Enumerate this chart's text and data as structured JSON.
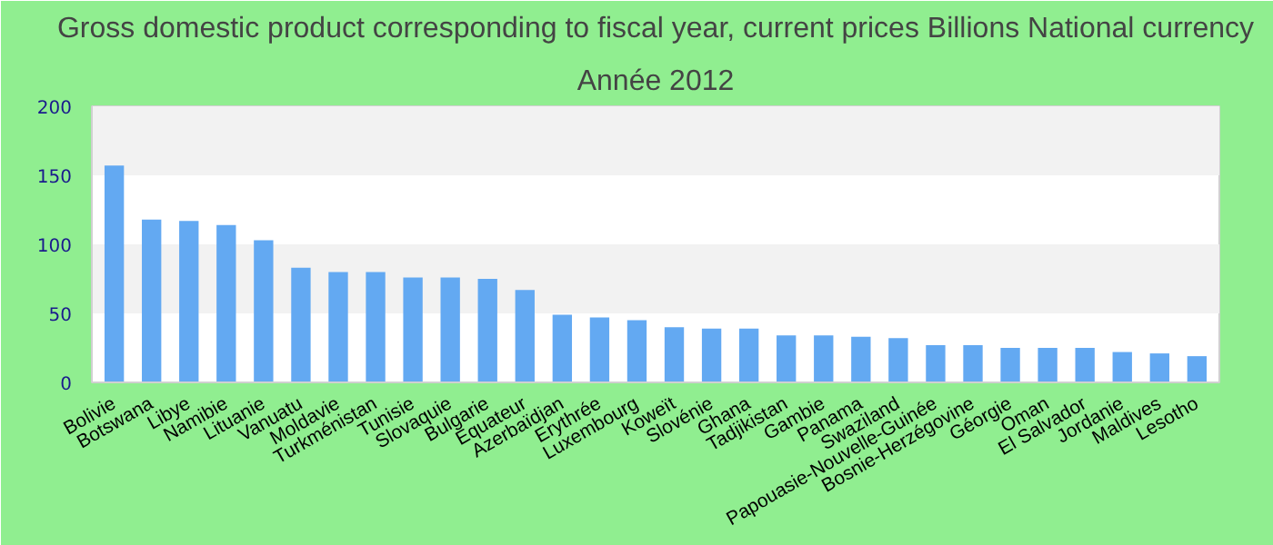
{
  "chart_data": {
    "type": "bar",
    "title": "Gross domestic product corresponding to fiscal year, current prices Billions National currency",
    "subtitle": "Année 2012",
    "categories": [
      "Bolivie",
      "Botswana",
      "Libye",
      "Namibie",
      "Lituanie",
      "Vanuatu",
      "Moldavie",
      "Turkménistan",
      "Tunisie",
      "Slovaquie",
      "Bulgarie",
      "Equateur",
      "Azerbaïdjan",
      "Erythrée",
      "Luxembourg",
      "Koweït",
      "Slovénie",
      "Ghana",
      "Tadjikistan",
      "Gambie",
      "Panama",
      "Swaziland",
      "Papouasie-Nouvelle-Guinée",
      "Bosnie-Herzégovine",
      "Géorgie",
      "Oman",
      "El Salvador",
      "Jordanie",
      "Maldives",
      "Lesotho"
    ],
    "values": [
      157,
      118,
      117,
      114,
      103,
      83,
      80,
      80,
      76,
      76,
      75,
      67,
      49,
      47,
      45,
      40,
      39,
      39,
      34,
      34,
      33,
      32,
      27,
      27,
      25,
      25,
      25,
      22,
      21,
      19
    ],
    "color": "#63a9f2",
    "ylim": [
      0,
      200
    ],
    "yticks": [
      0,
      50,
      100,
      150,
      200
    ]
  }
}
